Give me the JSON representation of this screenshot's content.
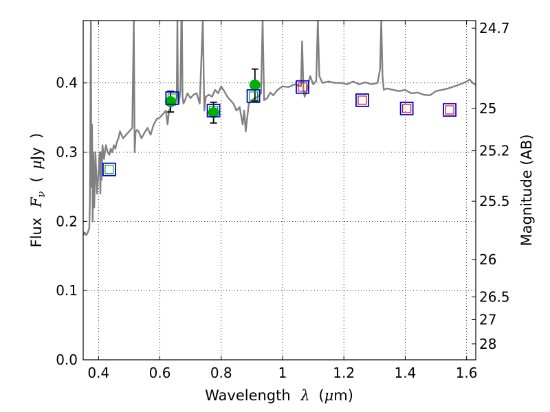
{
  "chart_data": {
    "type": "line",
    "xlabel": "Wavelength",
    "xlabel_symbol": "λ",
    "xlabel_unit_open": "(",
    "xlabel_unit_mu": "μ",
    "xlabel_unit_rest": "m)",
    "ylabel": "Flux",
    "ylabel_symbol": "F",
    "ylabel_subscript": "ν",
    "ylabel_unit_open": "(",
    "ylabel_unit_mu": "μ",
    "ylabel_unit_rest": "Jy",
    "ylabel_unit_close": ")",
    "y2label": "Magnitude (AB)",
    "xlim": [
      0.35,
      1.63
    ],
    "ylim": [
      0.0,
      0.49
    ],
    "grid": true,
    "colors": {
      "spectrum": "#808080",
      "photometry_point": "#00b000",
      "errorbar": "#000000",
      "model_box": "#0000e0",
      "box_inner_green": "#00b000",
      "box_inner_red": "#e00000"
    },
    "x_ticks": [
      {
        "value": 0.4,
        "label": "0.4"
      },
      {
        "value": 0.6,
        "label": "0.6"
      },
      {
        "value": 0.8,
        "label": "0.8"
      },
      {
        "value": 1.0,
        "label": "1"
      },
      {
        "value": 1.2,
        "label": "1.2"
      },
      {
        "value": 1.4,
        "label": "1.4"
      },
      {
        "value": 1.6,
        "label": "1.6"
      }
    ],
    "y_ticks": [
      {
        "value": 0.0,
        "label": "0.0"
      },
      {
        "value": 0.1,
        "label": "0.1"
      },
      {
        "value": 0.2,
        "label": "0.2"
      },
      {
        "value": 0.3,
        "label": "0.3"
      },
      {
        "value": 0.4,
        "label": "0.4"
      }
    ],
    "y2_ticks": [
      {
        "label": "24.7",
        "flux": 0.479
      },
      {
        "label": "25",
        "flux": 0.363
      },
      {
        "label": "25.2",
        "flux": 0.302
      },
      {
        "label": "25.5",
        "flux": 0.229
      },
      {
        "label": "26",
        "flux": 0.145
      },
      {
        "label": "26.5",
        "flux": 0.091
      },
      {
        "label": "27",
        "flux": 0.058
      },
      {
        "label": "28",
        "flux": 0.023
      }
    ],
    "photometry": [
      {
        "x": 0.635,
        "y": 0.373,
        "yerr": 0.015
      },
      {
        "x": 0.775,
        "y": 0.357,
        "yerr": 0.015
      },
      {
        "x": 0.91,
        "y": 0.397,
        "yerr": 0.023
      }
    ],
    "model_fluxes": [
      {
        "x": 0.435,
        "y": 0.275,
        "inner": "green"
      },
      {
        "x": 0.64,
        "y": 0.378,
        "inner": "green"
      },
      {
        "x": 0.775,
        "y": 0.36,
        "inner": "green"
      },
      {
        "x": 0.905,
        "y": 0.381,
        "inner": "green"
      },
      {
        "x": 1.065,
        "y": 0.394,
        "inner": "red"
      },
      {
        "x": 1.26,
        "y": 0.375,
        "inner": "red"
      },
      {
        "x": 1.405,
        "y": 0.363,
        "inner": "red"
      },
      {
        "x": 1.545,
        "y": 0.361,
        "inner": "red"
      }
    ],
    "spectrum": {
      "x": [
        0.35,
        0.355,
        0.36,
        0.365,
        0.37,
        0.372,
        0.375,
        0.377,
        0.379,
        0.381,
        0.383,
        0.386,
        0.39,
        0.395,
        0.4,
        0.404,
        0.406,
        0.408,
        0.41,
        0.413,
        0.418,
        0.424,
        0.43,
        0.435,
        0.44,
        0.445,
        0.45,
        0.455,
        0.46,
        0.465,
        0.47,
        0.48,
        0.49,
        0.5,
        0.51,
        0.515,
        0.518,
        0.521,
        0.525,
        0.53,
        0.54,
        0.55,
        0.56,
        0.57,
        0.58,
        0.59,
        0.6,
        0.61,
        0.62,
        0.625,
        0.63,
        0.64,
        0.65,
        0.655,
        0.657,
        0.659,
        0.662,
        0.667,
        0.67,
        0.672,
        0.674,
        0.677,
        0.682,
        0.69,
        0.7,
        0.71,
        0.72,
        0.73,
        0.74,
        0.745,
        0.75,
        0.76,
        0.77,
        0.78,
        0.79,
        0.8,
        0.81,
        0.82,
        0.83,
        0.84,
        0.85,
        0.86,
        0.87,
        0.875,
        0.88,
        0.89,
        0.9,
        0.91,
        0.92,
        0.93,
        0.935,
        0.94,
        0.95,
        0.96,
        0.97,
        0.98,
        0.99,
        1.0,
        1.02,
        1.04,
        1.055,
        1.06,
        1.064,
        1.068,
        1.072,
        1.08,
        1.09,
        1.1,
        1.11,
        1.115,
        1.12,
        1.13,
        1.15,
        1.17,
        1.19,
        1.21,
        1.23,
        1.25,
        1.27,
        1.29,
        1.31,
        1.318,
        1.322,
        1.326,
        1.33,
        1.34,
        1.36,
        1.38,
        1.4,
        1.42,
        1.44,
        1.46,
        1.48,
        1.5,
        1.52,
        1.54,
        1.56,
        1.58,
        1.6,
        1.61,
        1.62,
        1.63
      ],
      "y": [
        0.18,
        0.184,
        0.18,
        0.184,
        0.19,
        0.23,
        0.49,
        0.25,
        0.34,
        0.2,
        0.3,
        0.22,
        0.3,
        0.24,
        0.27,
        0.3,
        0.24,
        0.3,
        0.26,
        0.31,
        0.29,
        0.31,
        0.3,
        0.296,
        0.305,
        0.3,
        0.31,
        0.305,
        0.315,
        0.32,
        0.33,
        0.32,
        0.325,
        0.33,
        0.335,
        0.49,
        0.3,
        0.33,
        0.332,
        0.33,
        0.32,
        0.328,
        0.335,
        0.325,
        0.34,
        0.348,
        0.35,
        0.355,
        0.36,
        0.34,
        0.36,
        0.37,
        0.368,
        0.38,
        0.49,
        0.39,
        0.37,
        0.39,
        0.49,
        0.49,
        0.38,
        0.37,
        0.375,
        0.385,
        0.378,
        0.383,
        0.385,
        0.37,
        0.49,
        0.36,
        0.38,
        0.383,
        0.38,
        0.39,
        0.385,
        0.395,
        0.388,
        0.38,
        0.375,
        0.37,
        0.36,
        0.365,
        0.34,
        0.36,
        0.33,
        0.37,
        0.375,
        0.378,
        0.38,
        0.385,
        0.49,
        0.375,
        0.378,
        0.386,
        0.382,
        0.388,
        0.392,
        0.395,
        0.394,
        0.398,
        0.396,
        0.395,
        0.46,
        0.39,
        0.38,
        0.39,
        0.41,
        0.398,
        0.403,
        0.49,
        0.41,
        0.4,
        0.402,
        0.4,
        0.4,
        0.398,
        0.402,
        0.398,
        0.401,
        0.398,
        0.4,
        0.42,
        0.49,
        0.41,
        0.39,
        0.392,
        0.39,
        0.388,
        0.39,
        0.385,
        0.386,
        0.383,
        0.382,
        0.388,
        0.39,
        0.392,
        0.395,
        0.398,
        0.402,
        0.405,
        0.4,
        0.397
      ]
    }
  }
}
